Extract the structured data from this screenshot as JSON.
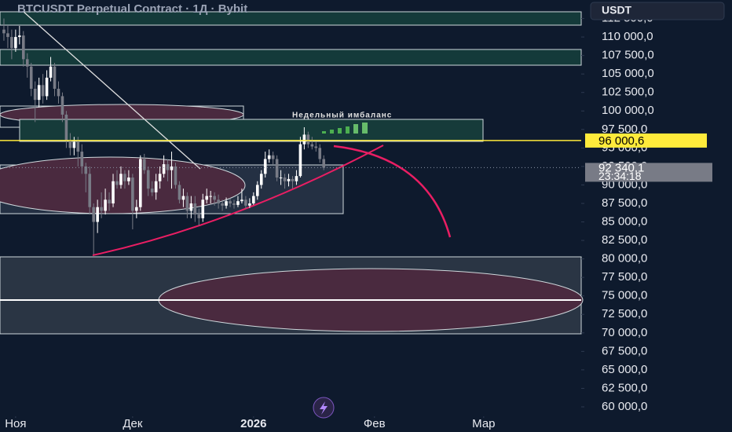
{
  "chart_data": {
    "type": "candlestick",
    "title": "BTCUSDT Perpetual Contract · 1Д · Bybit",
    "currency_button": "USDT",
    "annotation": "Недельный имбаланс",
    "up_color": "#ffffff",
    "down_color": "#787b86",
    "xlim": [
      -1,
      148
    ],
    "xticks": [
      {
        "value": 3,
        "label": "Ноя"
      },
      {
        "value": 33,
        "label": "Дек"
      },
      {
        "value": 64,
        "label": "2026"
      },
      {
        "value": 95,
        "label": "Фев"
      },
      {
        "value": 123,
        "label": "Мар"
      }
    ],
    "ylim": [
      56600,
      115000
    ],
    "yticks": [
      {
        "value": 60000,
        "label": "60 000,0"
      },
      {
        "value": 62500,
        "label": "62 500,0"
      },
      {
        "value": 65000,
        "label": "65 000,0"
      },
      {
        "value": 67500,
        "label": "67 500,0"
      },
      {
        "value": 70000,
        "label": "70 000,0"
      },
      {
        "value": 72500,
        "label": "72 500,0"
      },
      {
        "value": 75000,
        "label": "75 000,0"
      },
      {
        "value": 77500,
        "label": "77 500,0"
      },
      {
        "value": 80000,
        "label": "80 000,0"
      },
      {
        "value": 82500,
        "label": "82 500,0"
      },
      {
        "value": 85000,
        "label": "85 000,0"
      },
      {
        "value": 87500,
        "label": "87 500,0"
      },
      {
        "value": 90000,
        "label": "90 000,0"
      },
      {
        "value": 92500,
        "label": "92 500,0"
      },
      {
        "value": 95000,
        "label": "95 000,0"
      },
      {
        "value": 97500,
        "label": "97 500,0"
      },
      {
        "value": 100000,
        "label": "100 000,0"
      },
      {
        "value": 102500,
        "label": "102 500,0"
      },
      {
        "value": 105000,
        "label": "105 000,0"
      },
      {
        "value": 107500,
        "label": "107 500,0"
      },
      {
        "value": 110000,
        "label": "110 000,0"
      },
      {
        "value": 112500,
        "label": "112 500,0"
      }
    ],
    "price_lines": [
      {
        "value": 96000.6,
        "label": "96 000,6",
        "color": "#ffeb3b"
      },
      {
        "value": 92340.1,
        "label": "92 340,1",
        "countdown": "23:34:18",
        "color": "#787b86"
      }
    ],
    "candles": [
      [
        111000,
        112500,
        109500,
        110500
      ],
      [
        110500,
        111500,
        108500,
        110000
      ],
      [
        110000,
        111000,
        107000,
        108500
      ],
      [
        108500,
        111000,
        108000,
        110000
      ],
      [
        110000,
        111500,
        109000,
        110200
      ],
      [
        110200,
        110800,
        106000,
        107000
      ],
      [
        107000,
        107800,
        104500,
        106000
      ],
      [
        106000,
        106500,
        102000,
        103000
      ],
      [
        103000,
        104000,
        98500,
        101500
      ],
      [
        101500,
        104500,
        100500,
        103500
      ],
      [
        103500,
        105000,
        101000,
        102000
      ],
      [
        102000,
        105500,
        101500,
        104500
      ],
      [
        104500,
        107300,
        104000,
        106000
      ],
      [
        106000,
        106500,
        102000,
        103000
      ],
      [
        103000,
        104000,
        101000,
        102000
      ],
      [
        102000,
        102500,
        98500,
        99500
      ],
      [
        99500,
        100000,
        95000,
        96000
      ],
      [
        96000,
        97000,
        94000,
        95000
      ],
      [
        95000,
        96500,
        94000,
        95800
      ],
      [
        95800,
        96500,
        92500,
        94500
      ],
      [
        94500,
        95500,
        91500,
        92500
      ],
      [
        92500,
        93000,
        89000,
        91500
      ],
      [
        91500,
        92500,
        86000,
        87000
      ],
      [
        87000,
        87500,
        80600,
        85000
      ],
      [
        85000,
        88000,
        83500,
        87000
      ],
      [
        87000,
        89000,
        85500,
        86500
      ],
      [
        86500,
        89500,
        86000,
        88000
      ],
      [
        88000,
        89000,
        86500,
        87500
      ],
      [
        87500,
        91500,
        87000,
        90500
      ],
      [
        90500,
        92000,
        89500,
        90000
      ],
      [
        90000,
        92500,
        89500,
        91500
      ],
      [
        91500,
        92000,
        89500,
        90500
      ],
      [
        90500,
        92000,
        90000,
        91000
      ],
      [
        91000,
        91500,
        84000,
        86500
      ],
      [
        86500,
        88000,
        85500,
        87000
      ],
      [
        87000,
        94000,
        86500,
        93500
      ],
      [
        93500,
        94200,
        91500,
        92000
      ],
      [
        92000,
        92500,
        88500,
        89500
      ],
      [
        89500,
        90500,
        88500,
        89000
      ],
      [
        89000,
        91500,
        88000,
        90500
      ],
      [
        90500,
        92500,
        89500,
        91500
      ],
      [
        91500,
        94000,
        91000,
        92800
      ],
      [
        92800,
        93500,
        90500,
        92000
      ],
      [
        92000,
        94500,
        89500,
        92500
      ],
      [
        92500,
        93000,
        89500,
        90000
      ],
      [
        90000,
        90500,
        87500,
        88000
      ],
      [
        88000,
        89500,
        87000,
        88500
      ],
      [
        88500,
        89000,
        85500,
        86500
      ],
      [
        86500,
        88500,
        85500,
        87500
      ],
      [
        87500,
        88500,
        85000,
        86000
      ],
      [
        86000,
        86800,
        84500,
        85500
      ],
      [
        85500,
        88800,
        85000,
        88000
      ],
      [
        88000,
        89500,
        87500,
        88500
      ],
      [
        88500,
        89200,
        87500,
        88500
      ],
      [
        88500,
        89000,
        87200,
        88000
      ],
      [
        88000,
        88700,
        86800,
        87500
      ],
      [
        87500,
        88000,
        86500,
        87200
      ],
      [
        87200,
        88300,
        86800,
        87800
      ],
      [
        87800,
        88200,
        87000,
        87500
      ],
      [
        87500,
        88000,
        86800,
        87300
      ],
      [
        87300,
        88500,
        87000,
        87800
      ],
      [
        87800,
        89500,
        87500,
        88000
      ],
      [
        88000,
        88500,
        86800,
        87200
      ],
      [
        87200,
        88200,
        86900,
        87500
      ],
      [
        87500,
        89000,
        87300,
        88500
      ],
      [
        88500,
        90500,
        88000,
        90000
      ],
      [
        90000,
        92000,
        89500,
        91500
      ],
      [
        91500,
        94500,
        91000,
        93500
      ],
      [
        93500,
        94800,
        93000,
        94000
      ],
      [
        94000,
        94500,
        92800,
        93500
      ],
      [
        93500,
        94000,
        90500,
        91000
      ],
      [
        91000,
        92000,
        90000,
        91000
      ],
      [
        91000,
        91500,
        89500,
        90500
      ],
      [
        90500,
        91500,
        89800,
        90800
      ],
      [
        90800,
        91200,
        89500,
        90500
      ],
      [
        90500,
        92000,
        90000,
        91200
      ],
      [
        91200,
        96500,
        91000,
        95500
      ],
      [
        95500,
        97800,
        94800,
        96800
      ],
      [
        96800,
        97200,
        95000,
        95500
      ],
      [
        95500,
        96500,
        94800,
        95200
      ],
      [
        95200,
        95800,
        94500,
        95000
      ],
      [
        95000,
        95500,
        93000,
        93500
      ],
      [
        93500,
        94000,
        92000,
        92340
      ]
    ]
  }
}
